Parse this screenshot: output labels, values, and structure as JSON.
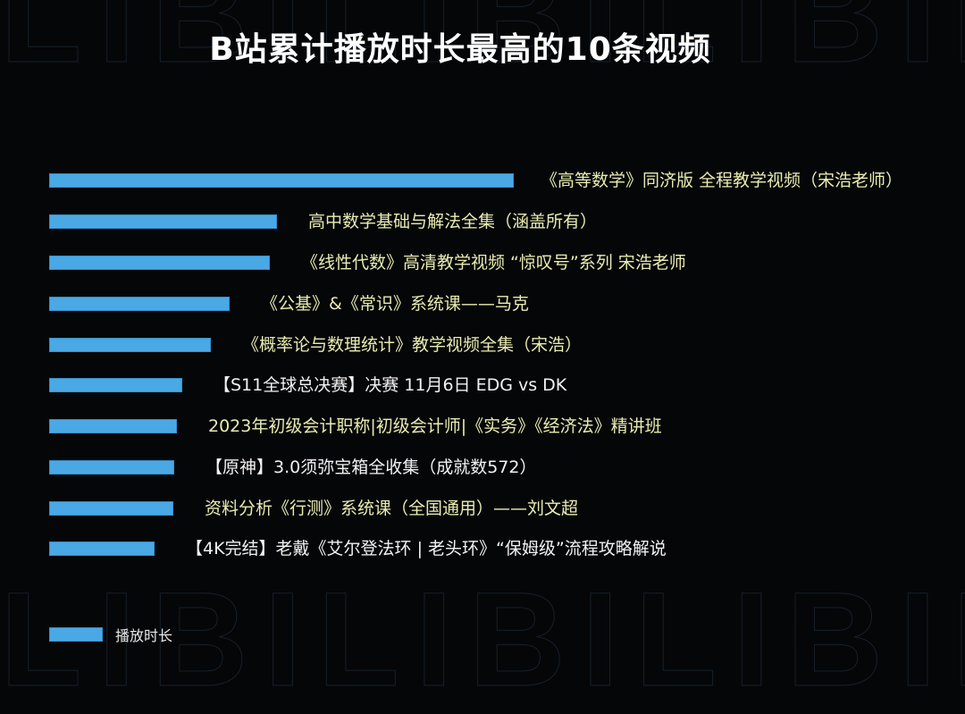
{
  "chart_data": {
    "type": "bar",
    "orientation": "horizontal",
    "title": "B站累计播放时长最高的10条视频",
    "xlabel": "",
    "ylabel": "",
    "grid": false,
    "legend_position": "bottom-left",
    "note": "No axis scale shown; values are relative bar lengths (px, longest = 520)",
    "categories": [
      "《高等数学》同济版 全程教学视频（宋浩老师）",
      "高中数学基础与解法全集（涵盖所有）",
      "《线性代数》高清教学视频 “惊叹号”系列 宋浩老师",
      "《公基》&《常识》系统课——马克",
      "《概率论与数理统计》教学视频全集（宋浩）",
      "【S11全球总决赛】决赛 11月6日 EDG vs DK",
      "2023年初级会计职称|初级会计师|《实务》《经济法》精讲班",
      "【原神】3.0须弥宝箱全收集（成就数572）",
      "资料分析《行测》系统课（全国通用）——刘文超",
      "【4K完结】老戴《艾尔登法环 | 老头环》“保姆级”流程攻略解说"
    ],
    "series": [
      {
        "name": "播放时长",
        "color": "#4aa8e4",
        "values": [
          520,
          255,
          247,
          202,
          181,
          149,
          143,
          140,
          139,
          118
        ]
      }
    ]
  },
  "watermark": {
    "text_top": "LIBILIBILIBILIBI",
    "text_bottom": "LIBILIBILIBILIBI"
  },
  "legend": {
    "label": "播放时长"
  }
}
